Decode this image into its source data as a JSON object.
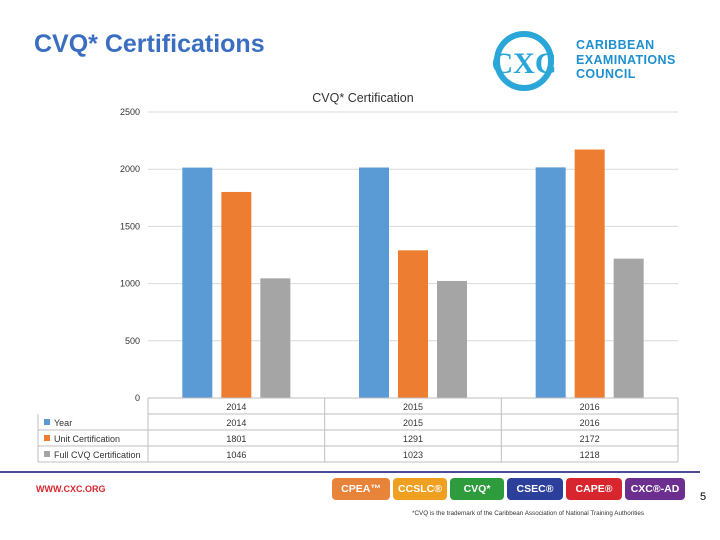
{
  "slide": {
    "title": "CVQ* Certifications",
    "page_number": "5",
    "footer_url": "WWW.CXC.ORG",
    "trademark_note": "*CVQ is the trademark of the Caribbean Association of National Training Authorities",
    "accent_color": "#3a6ec0",
    "footer_line_color": "#4a4a9a"
  },
  "logo": {
    "mark": "CXC",
    "lines": [
      "CARIBBEAN",
      "EXAMINATIONS",
      "COUNCIL"
    ],
    "mark_color": "#2aa7d8",
    "text_color": "#1e8fcf"
  },
  "brands": [
    {
      "label": "CPEA™",
      "color": "#e8833a",
      "icon": "cpea-badge"
    },
    {
      "label": "CCSLC®",
      "color": "#f0a020",
      "icon": "ccslc-badge"
    },
    {
      "label": "CVQ*",
      "color": "#2e9b3c",
      "icon": "cvq-badge"
    },
    {
      "label": "CSEC®",
      "color": "#2c3f9a",
      "icon": "csec-badge"
    },
    {
      "label": "CAPE®",
      "color": "#d8262e",
      "icon": "cape-badge"
    },
    {
      "label": "CXC®-AD",
      "color": "#6d2f8f",
      "icon": "cxc-ad-badge"
    }
  ],
  "chart_data": {
    "type": "bar",
    "title": "CVQ* Certification",
    "categories": [
      "2014",
      "2015",
      "2016"
    ],
    "series": [
      {
        "name": "Year",
        "values": [
          2014,
          2015,
          2016
        ],
        "color": "#5b9bd5"
      },
      {
        "name": "Unit Certification",
        "values": [
          1801,
          1291,
          2172
        ],
        "color": "#ed7d31"
      },
      {
        "name": "Full CVQ Certification",
        "values": [
          1046,
          1023,
          1218
        ],
        "color": "#a5a5a5"
      }
    ],
    "ylim": [
      0,
      2500
    ],
    "yticks": [
      0,
      500,
      1000,
      1500,
      2000,
      2500
    ],
    "grid": true,
    "legend": "data-table-bottom",
    "xlabel": "",
    "ylabel": ""
  }
}
